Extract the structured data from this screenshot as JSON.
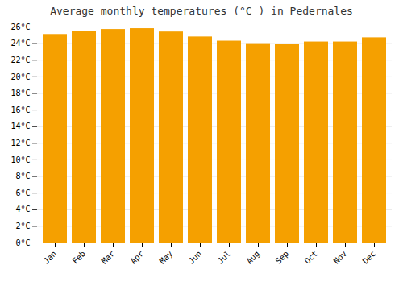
{
  "chart_data": {
    "type": "bar",
    "title": "Average monthly temperatures (°C ) in Pedernales",
    "categories": [
      "Jan",
      "Feb",
      "Mar",
      "Apr",
      "May",
      "Jun",
      "Jul",
      "Aug",
      "Sep",
      "Oct",
      "Nov",
      "Dec"
    ],
    "values": [
      25.1,
      25.5,
      25.7,
      25.8,
      25.4,
      24.8,
      24.3,
      24.0,
      23.9,
      24.2,
      24.2,
      24.7
    ],
    "color": "#F5A000",
    "ylim": [
      0,
      26
    ],
    "yticks": [
      {
        "value": 0,
        "label": "0°C"
      },
      {
        "value": 2,
        "label": "2°C"
      },
      {
        "value": 4,
        "label": "4°C"
      },
      {
        "value": 6,
        "label": "6°C"
      },
      {
        "value": 8,
        "label": "8°C"
      },
      {
        "value": 10,
        "label": "10°C"
      },
      {
        "value": 12,
        "label": "12°C"
      },
      {
        "value": 14,
        "label": "14°C"
      },
      {
        "value": 16,
        "label": "16°C"
      },
      {
        "value": 18,
        "label": "18°C"
      },
      {
        "value": 20,
        "label": "20°C"
      },
      {
        "value": 22,
        "label": "22°C"
      },
      {
        "value": 24,
        "label": "24°C"
      },
      {
        "value": 26,
        "label": "26°C"
      }
    ],
    "grid": true
  }
}
